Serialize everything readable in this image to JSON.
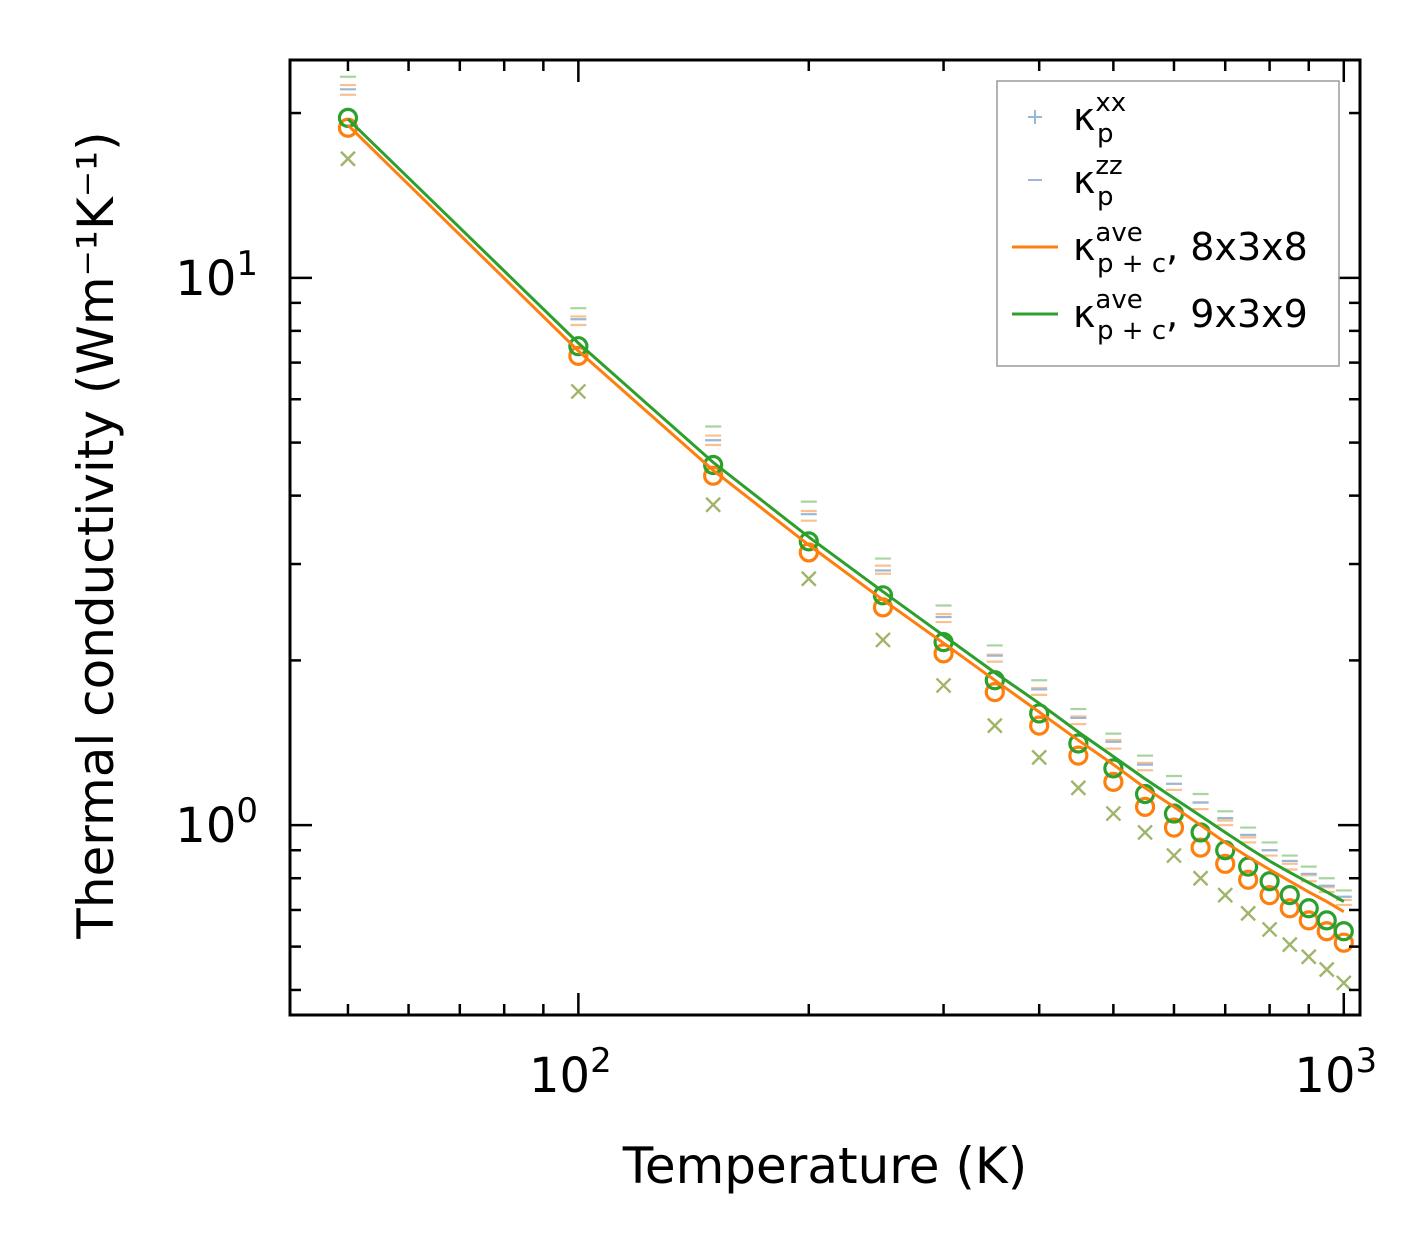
{
  "chart_data": {
    "type": "line",
    "title": "",
    "xlabel": "Temperature (K)",
    "ylabel": "Thermal conductivity (Wm⁻¹K⁻¹)",
    "xscale": "log",
    "yscale": "log",
    "xlim": [
      42,
      1050
    ],
    "ylim": [
      0.45,
      25
    ],
    "x_major_ticks": [
      {
        "value": 100,
        "base": "10",
        "exp": "2"
      },
      {
        "value": 1000,
        "base": "10",
        "exp": "3"
      }
    ],
    "y_major_ticks": [
      {
        "value": 1,
        "base": "10",
        "exp": "0"
      },
      {
        "value": 10,
        "base": "10",
        "exp": "1"
      }
    ],
    "x": [
      50,
      100,
      150,
      200,
      250,
      300,
      350,
      400,
      450,
      500,
      550,
      600,
      650,
      700,
      750,
      800,
      850,
      900,
      950,
      1000
    ],
    "legend": {
      "position": "top-right",
      "entries": [
        {
          "main": "κ",
          "sub": "p",
          "sup": "xx",
          "suffix": "",
          "marker": "plus",
          "color": "#9ab7d6"
        },
        {
          "main": "κ",
          "sub": "p",
          "sup": "zz",
          "suffix": "",
          "marker": "hline",
          "color": "#9ab7d6"
        },
        {
          "main": "κ",
          "sub": "p + c",
          "sup": "ave",
          "suffix": ", 8x3x8",
          "marker": "line",
          "color": "#ff7f0e"
        },
        {
          "main": "κ",
          "sub": "p + c",
          "sup": "ave",
          "suffix": ", 9x3x9",
          "marker": "line",
          "color": "#2ca02c"
        }
      ]
    },
    "series": [
      {
        "name": "kappa_p+c ave, 8x3x8 (line)",
        "style": "line",
        "color": "#ff7f0e",
        "values": [
          19.0,
          7.35,
          4.45,
          3.25,
          2.58,
          2.15,
          1.84,
          1.61,
          1.43,
          1.29,
          1.17,
          1.08,
          1.0,
          0.93,
          0.875,
          0.83,
          0.79,
          0.755,
          0.725,
          0.695
        ]
      },
      {
        "name": "kappa_p+c ave, 9x3x9 (line)",
        "style": "line",
        "color": "#2ca02c",
        "values": [
          19.5,
          7.6,
          4.6,
          3.36,
          2.67,
          2.22,
          1.9,
          1.67,
          1.48,
          1.335,
          1.215,
          1.12,
          1.04,
          0.97,
          0.91,
          0.86,
          0.82,
          0.785,
          0.755,
          0.725
        ]
      },
      {
        "name": "kappa_p ave, 8x3x8",
        "style": "circle",
        "color": "#ff7f0e",
        "values": [
          18.8,
          7.2,
          4.35,
          3.15,
          2.5,
          2.06,
          1.75,
          1.52,
          1.34,
          1.2,
          1.08,
          0.99,
          0.91,
          0.85,
          0.795,
          0.745,
          0.705,
          0.67,
          0.64,
          0.61
        ]
      },
      {
        "name": "kappa_p ave, 9x3x9",
        "style": "circle",
        "color": "#2ca02c",
        "values": [
          19.6,
          7.5,
          4.55,
          3.3,
          2.63,
          2.16,
          1.84,
          1.6,
          1.41,
          1.27,
          1.14,
          1.05,
          0.97,
          0.9,
          0.84,
          0.79,
          0.745,
          0.705,
          0.67,
          0.64
        ]
      },
      {
        "name": "kappa_p xx, 8x3x8",
        "style": "hline",
        "color": "#f9c090",
        "values": [
          22.5,
          8.5,
          5.15,
          3.75,
          2.98,
          2.43,
          2.05,
          1.78,
          1.58,
          1.43,
          1.3,
          1.19,
          1.1,
          1.02,
          0.95,
          0.9,
          0.85,
          0.81,
          0.77,
          0.73
        ]
      },
      {
        "name": "kappa_p zz, 8x3x8",
        "style": "hline",
        "color": "#f9c090",
        "values": [
          21.6,
          8.2,
          4.95,
          3.6,
          2.88,
          2.35,
          1.99,
          1.73,
          1.53,
          1.38,
          1.26,
          1.16,
          1.07,
          1.0,
          0.93,
          0.88,
          0.83,
          0.79,
          0.755,
          0.715
        ]
      },
      {
        "name": "kappa_p xx, 9x3x9",
        "style": "hline",
        "color": "#a8d4a0",
        "values": [
          23.3,
          8.8,
          5.35,
          3.9,
          3.07,
          2.52,
          2.13,
          1.84,
          1.63,
          1.47,
          1.34,
          1.23,
          1.14,
          1.06,
          0.99,
          0.93,
          0.88,
          0.84,
          0.8,
          0.76
        ]
      },
      {
        "name": "kappa_p zz, 9x3x9",
        "style": "hline",
        "color": "#9ab7d6",
        "values": [
          22.1,
          8.4,
          5.05,
          3.7,
          2.92,
          2.4,
          2.04,
          1.77,
          1.57,
          1.42,
          1.29,
          1.19,
          1.1,
          1.03,
          0.96,
          0.9,
          0.86,
          0.815,
          0.775,
          0.74
        ]
      },
      {
        "name": "kappa_p yy (cross)",
        "style": "cross",
        "color": "#a0b46a",
        "values": [
          16.5,
          6.2,
          3.85,
          2.82,
          2.18,
          1.8,
          1.52,
          1.33,
          1.17,
          1.05,
          0.97,
          0.88,
          0.8,
          0.745,
          0.69,
          0.645,
          0.605,
          0.575,
          0.545,
          0.515
        ]
      }
    ]
  }
}
